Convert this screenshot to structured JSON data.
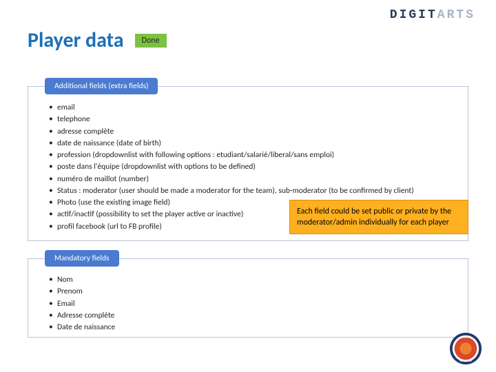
{
  "logo": {
    "part1": "DIGIT",
    "part2": "ARTS"
  },
  "title": "Player data",
  "status_badge": "Done",
  "sections": {
    "extra": {
      "header": "Additional fields (extra fields)",
      "items": [
        "email",
        "telephone",
        "adresse complète",
        "date de naissance (date of birth)",
        "profession (dropdownlist with following options : etudiant/salarié/liberal/sans emploi)",
        "poste dans l'équipe (dropdownlist with options to be defined)",
        "numéro de maillot (number)",
        "Status : moderator (user should be made a moderator for the team), sub-moderator (to be confirmed by client)",
        "Photo (use the existing image field)",
        "actif/inactif (possibility to set the player active or inactive)",
        "profil facebook (url to FB profile)"
      ]
    },
    "mandatory": {
      "header": "Mandatory fields",
      "items": [
        "Nom",
        "Prenom",
        "Email",
        "Adresse complète",
        "Date de naissance"
      ]
    }
  },
  "callout": "Each field could be set public or private by the moderator/admin individually for each player",
  "colors": {
    "title": "#1d6fb8",
    "badge_bg": "#7cc242",
    "section_header_bg": "#4a7bd0",
    "section_border": "#b8c4d8",
    "callout_bg": "#ffb020",
    "seal_outer": "#1e3a6e",
    "seal_mid": "#d84a2a",
    "seal_inner": "#f08030"
  }
}
